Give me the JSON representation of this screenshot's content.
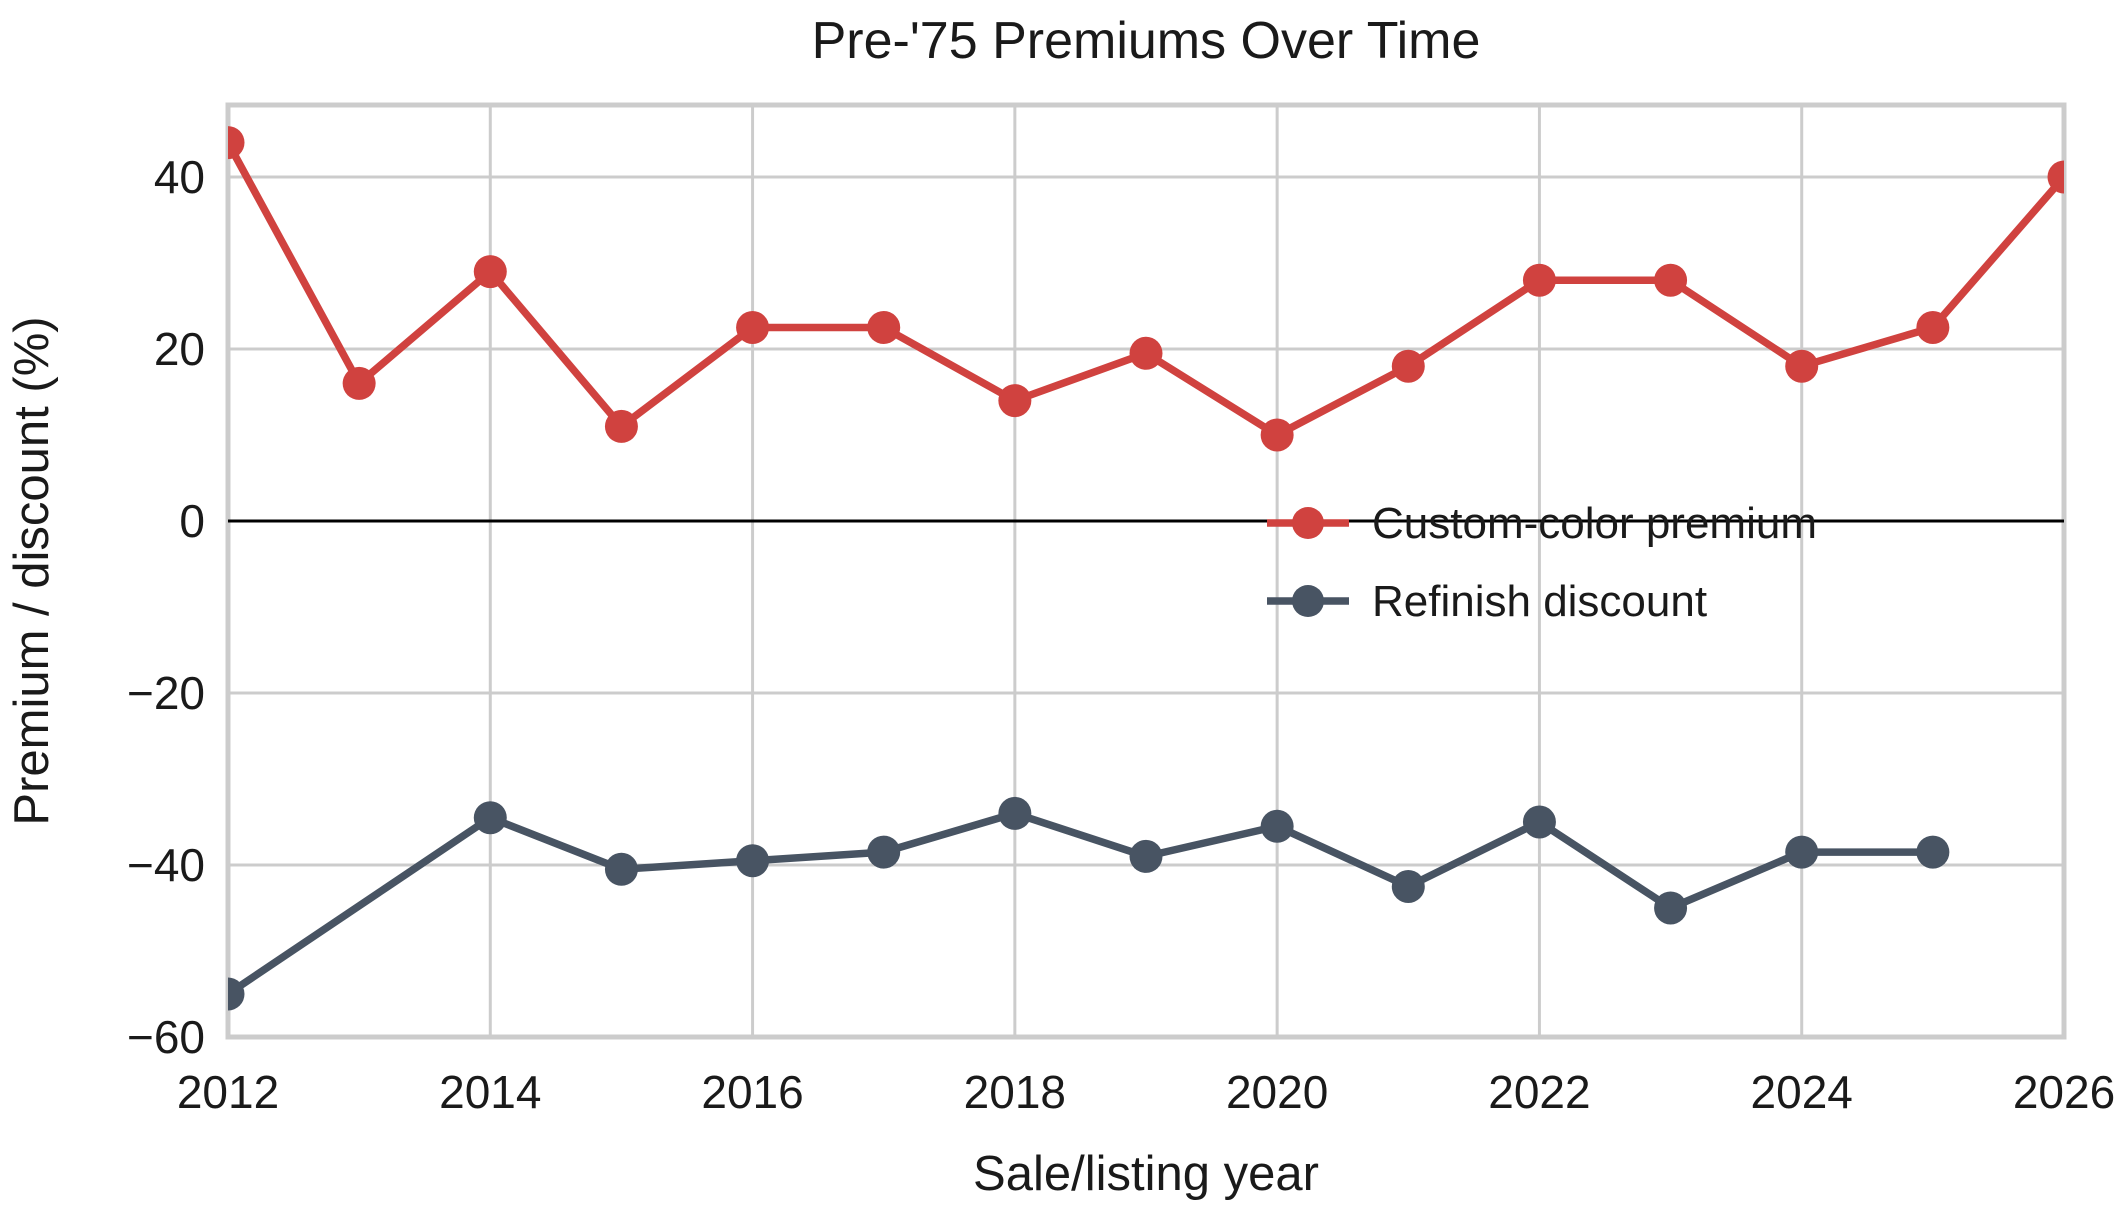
{
  "chart_data": {
    "type": "line",
    "title": "Pre-'75 Premiums Over Time",
    "xlabel": "Sale/listing year",
    "ylabel": "Premium / discount (%)",
    "x_ticks": [
      2012,
      2014,
      2016,
      2018,
      2020,
      2022,
      2024,
      2026
    ],
    "y_ticks": [
      40,
      20,
      0,
      -20,
      -40,
      -60
    ],
    "xlim": [
      2012,
      2026
    ],
    "ylim": [
      -60,
      48.4
    ],
    "grid": true,
    "zero_line": true,
    "legend_position": "center-right-inside",
    "series": [
      {
        "name": "Custom-color premium",
        "color": "#d0423f",
        "x": [
          2012,
          2013,
          2014,
          2015,
          2016,
          2017,
          2018,
          2019,
          2020,
          2021,
          2022,
          2023,
          2024,
          2025,
          2026
        ],
        "y": [
          44,
          16,
          29,
          11,
          22.5,
          22.5,
          14,
          19.5,
          10,
          18,
          28,
          28,
          18,
          22.5,
          40
        ]
      },
      {
        "name": "Refinish discount",
        "color": "#485463",
        "x": [
          2012,
          2014,
          2015,
          2016,
          2017,
          2018,
          2019,
          2020,
          2021,
          2022,
          2023,
          2024,
          2025
        ],
        "y": [
          -55,
          -34.5,
          -40.5,
          -39.5,
          -38.5,
          -34,
          -39,
          -35.5,
          -42.5,
          -35,
          -45,
          -38.5,
          -38.5
        ]
      }
    ],
    "colors": {
      "grid": "#cccccc",
      "spine": "#cccccc",
      "zero_line": "#000000",
      "text": "#1a1a1a",
      "background": "#ffffff"
    }
  }
}
